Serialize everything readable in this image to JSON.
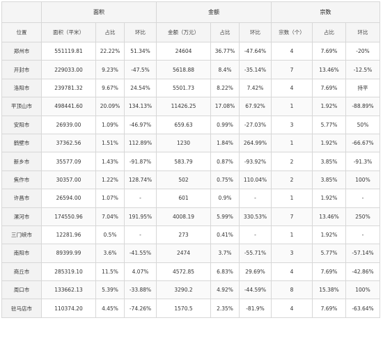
{
  "groups": {
    "area": "面积",
    "amount": "金额",
    "count": "宗数"
  },
  "columns": [
    "位置",
    "面积（平米）",
    "占比",
    "环比",
    "金额（万元）",
    "占比",
    "环比",
    "宗数（个）",
    "占比",
    "环比"
  ],
  "rows": [
    [
      "郑州市",
      "551119.81",
      "22.22%",
      "51.34%",
      "24604",
      "36.77%",
      "-47.64%",
      "4",
      "7.69%",
      "-20%"
    ],
    [
      "开封市",
      "229033.00",
      "9.23%",
      "-47.5%",
      "5618.88",
      "8.4%",
      "-35.14%",
      "7",
      "13.46%",
      "-12.5%"
    ],
    [
      "洛阳市",
      "239781.32",
      "9.67%",
      "24.54%",
      "5501.73",
      "8.22%",
      "7.42%",
      "4",
      "7.69%",
      "持平"
    ],
    [
      "平顶山市",
      "498441.60",
      "20.09%",
      "134.13%",
      "11426.25",
      "17.08%",
      "67.92%",
      "1",
      "1.92%",
      "-88.89%"
    ],
    [
      "安阳市",
      "26939.00",
      "1.09%",
      "-46.97%",
      "659.63",
      "0.99%",
      "-27.03%",
      "3",
      "5.77%",
      "50%"
    ],
    [
      "鹤壁市",
      "37362.56",
      "1.51%",
      "112.89%",
      "1230",
      "1.84%",
      "264.99%",
      "1",
      "1.92%",
      "-66.67%"
    ],
    [
      "新乡市",
      "35577.09",
      "1.43%",
      "-91.87%",
      "583.79",
      "0.87%",
      "-93.92%",
      "2",
      "3.85%",
      "-91.3%"
    ],
    [
      "焦作市",
      "30357.00",
      "1.22%",
      "128.74%",
      "502",
      "0.75%",
      "110.04%",
      "2",
      "3.85%",
      "100%"
    ],
    [
      "许昌市",
      "26594.00",
      "1.07%",
      "-",
      "601",
      "0.9%",
      "-",
      "1",
      "1.92%",
      "-"
    ],
    [
      "漯河市",
      "174550.96",
      "7.04%",
      "191.95%",
      "4008.19",
      "5.99%",
      "330.53%",
      "7",
      "13.46%",
      "250%"
    ],
    [
      "三门峡市",
      "12281.96",
      "0.5%",
      "-",
      "273",
      "0.41%",
      "-",
      "1",
      "1.92%",
      "-"
    ],
    [
      "南阳市",
      "89399.99",
      "3.6%",
      "-41.55%",
      "2474",
      "3.7%",
      "-55.71%",
      "3",
      "5.77%",
      "-57.14%"
    ],
    [
      "商丘市",
      "285319.10",
      "11.5%",
      "4.07%",
      "4572.85",
      "6.83%",
      "29.69%",
      "4",
      "7.69%",
      "-42.86%"
    ],
    [
      "周口市",
      "133662.13",
      "5.39%",
      "-33.88%",
      "3290.2",
      "4.92%",
      "-44.59%",
      "8",
      "15.38%",
      "100%"
    ],
    [
      "驻马店市",
      "110374.20",
      "4.45%",
      "-74.26%",
      "1570.5",
      "2.35%",
      "-81.9%",
      "4",
      "7.69%",
      "-63.64%"
    ]
  ]
}
